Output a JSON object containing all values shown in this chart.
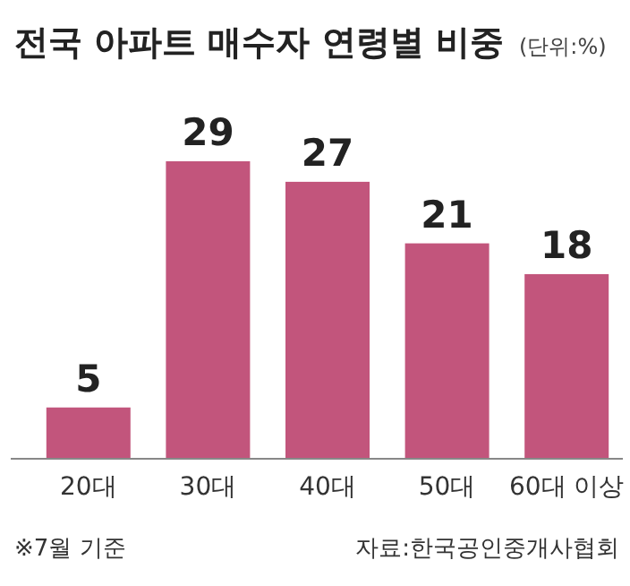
{
  "chart_data": {
    "type": "bar",
    "title": "전국 아파트 매수자 연령별 비중",
    "subtitle": "(단위:%)",
    "categories": [
      "20대",
      "30대",
      "40대",
      "50대",
      "60대 이상"
    ],
    "values": [
      5,
      29,
      27,
      21,
      18
    ],
    "color": "#c2557c",
    "data_labels": true,
    "annotations": [
      "※7월 기준",
      "자료:한국공인중개사협회"
    ]
  }
}
